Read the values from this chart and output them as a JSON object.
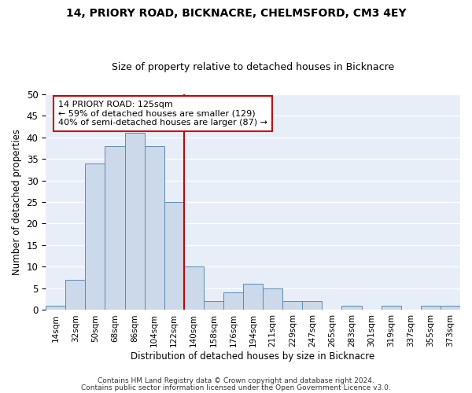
{
  "title": "14, PRIORY ROAD, BICKNACRE, CHELMSFORD, CM3 4EY",
  "subtitle": "Size of property relative to detached houses in Bicknacre",
  "xlabel": "Distribution of detached houses by size in Bicknacre",
  "ylabel": "Number of detached properties",
  "categories": [
    "14sqm",
    "32sqm",
    "50sqm",
    "68sqm",
    "86sqm",
    "104sqm",
    "122sqm",
    "140sqm",
    "158sqm",
    "176sqm",
    "194sqm",
    "211sqm",
    "229sqm",
    "247sqm",
    "265sqm",
    "283sqm",
    "301sqm",
    "319sqm",
    "337sqm",
    "355sqm",
    "373sqm"
  ],
  "values": [
    1,
    7,
    34,
    38,
    41,
    38,
    25,
    10,
    2,
    4,
    6,
    5,
    2,
    2,
    0,
    1,
    0,
    1,
    0,
    1,
    1
  ],
  "bar_color": "#ccd9ea",
  "bar_edge_color": "#5a8ab5",
  "property_line_label": "14 PRIORY ROAD: 125sqm",
  "annotation_line1": "← 59% of detached houses are smaller (129)",
  "annotation_line2": "40% of semi-detached houses are larger (87) →",
  "annotation_box_color": "#ffffff",
  "annotation_box_edge_color": "#cc0000",
  "annotation_text_color": "#000000",
  "vline_color": "#cc0000",
  "ylim": [
    0,
    50
  ],
  "background_color": "#e8eef7",
  "footer1": "Contains HM Land Registry data © Crown copyright and database right 2024.",
  "footer2": "Contains public sector information licensed under the Open Government Licence v3.0.",
  "title_fontsize": 10,
  "subtitle_fontsize": 9
}
